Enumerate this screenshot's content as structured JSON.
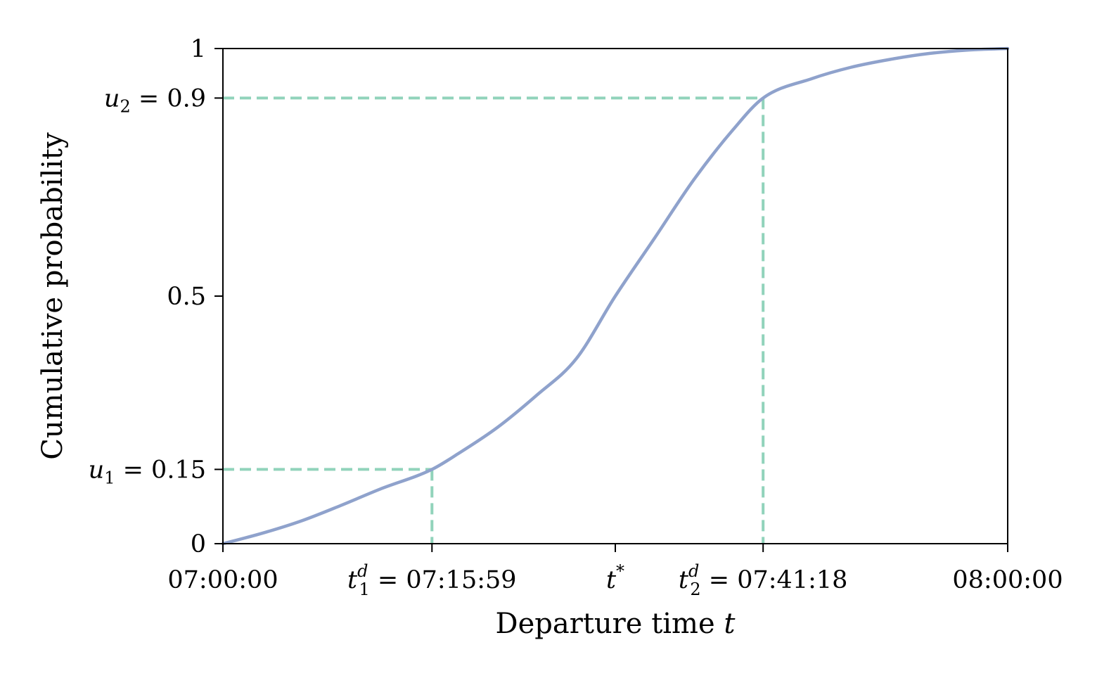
{
  "chart_data": {
    "type": "line",
    "xlabel": "Departure time",
    "xlabel_var": "t",
    "ylabel": "Cumulative probability",
    "xlim": [
      "07:00:00",
      "08:00:00"
    ],
    "ylim": [
      0,
      1
    ],
    "grid": false,
    "colors": {
      "curve": "#8fa2cc",
      "guide": "#91d3bb"
    },
    "x_tick_labels": [
      {
        "x": "07:00:00",
        "text": "07:00:00"
      },
      {
        "x": "07:15:59",
        "var": "t",
        "sub": "1",
        "sup": "d",
        "text": "= 07:15:59"
      },
      {
        "x": "07:30:00",
        "var": "t",
        "sup": "*",
        "text": ""
      },
      {
        "x": "07:41:18",
        "var": "t",
        "sub": "2",
        "sup": "d",
        "text": "= 07:41:18"
      },
      {
        "x": "08:00:00",
        "text": "08:00:00"
      }
    ],
    "y_tick_labels": [
      {
        "y": 0,
        "text": "0"
      },
      {
        "y": 0.15,
        "var": "u",
        "sub": "1",
        "text": "= 0.15"
      },
      {
        "y": 0.5,
        "text": "0.5"
      },
      {
        "y": 0.9,
        "var": "u",
        "sub": "2",
        "text": "= 0.9"
      },
      {
        "y": 1,
        "text": "1"
      }
    ],
    "series": [
      {
        "x": [
          "07:00:00",
          "07:03:00",
          "07:06:00",
          "07:09:00",
          "07:12:00",
          "07:15:59",
          "07:18:00",
          "07:21:00",
          "07:24:00",
          "07:27:00",
          "07:30:00",
          "07:33:00",
          "07:36:00",
          "07:39:00",
          "07:41:18",
          "07:45:00",
          "07:48:00",
          "07:51:00",
          "07:54:00",
          "07:57:00",
          "08:00:00"
        ],
        "y": [
          0,
          0.021,
          0.046,
          0.077,
          0.11,
          0.15,
          0.182,
          0.235,
          0.3,
          0.373,
          0.5,
          0.617,
          0.735,
          0.836,
          0.9,
          0.939,
          0.962,
          0.978,
          0.99,
          0.997,
          1
        ]
      }
    ],
    "guides": [
      {
        "x": "07:15:59",
        "y": 0.15
      },
      {
        "x": "07:41:18",
        "y": 0.9
      }
    ]
  }
}
